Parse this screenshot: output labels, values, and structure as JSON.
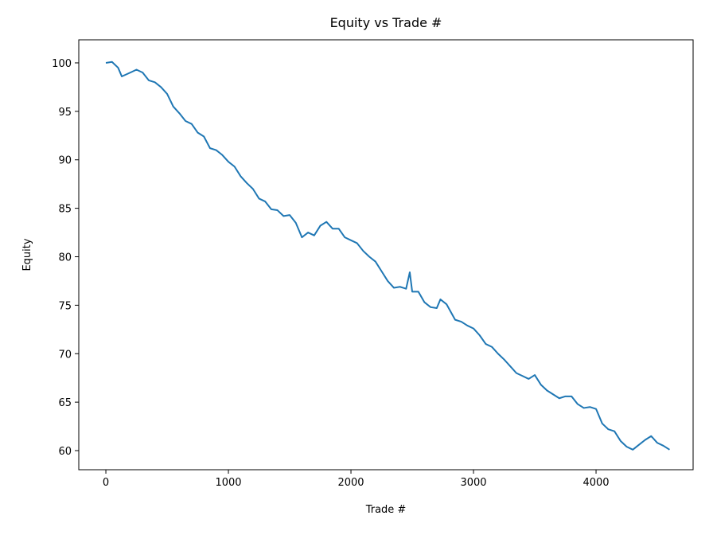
{
  "chart_data": {
    "type": "line",
    "title": "Equity vs Trade #",
    "x_label": "Trade #",
    "y_label": "Equity",
    "color": "#1f77b4",
    "x": [
      0,
      50,
      100,
      130,
      200,
      250,
      300,
      350,
      400,
      450,
      500,
      550,
      600,
      650,
      700,
      750,
      800,
      850,
      900,
      950,
      1000,
      1050,
      1100,
      1150,
      1200,
      1250,
      1300,
      1350,
      1400,
      1450,
      1500,
      1550,
      1600,
      1650,
      1700,
      1750,
      1800,
      1850,
      1900,
      1950,
      2000,
      2050,
      2100,
      2150,
      2200,
      2250,
      2300,
      2350,
      2400,
      2450,
      2480,
      2500,
      2550,
      2600,
      2650,
      2700,
      2730,
      2780,
      2850,
      2900,
      2950,
      3000,
      3050,
      3100,
      3150,
      3200,
      3250,
      3300,
      3350,
      3400,
      3450,
      3500,
      3550,
      3600,
      3650,
      3700,
      3750,
      3800,
      3850,
      3900,
      3950,
      4000,
      4050,
      4100,
      4150,
      4200,
      4250,
      4300,
      4350,
      4400,
      4450,
      4500,
      4550,
      4600
    ],
    "values": [
      100,
      100.1,
      99.5,
      98.6,
      99.0,
      99.3,
      99.0,
      98.2,
      98.0,
      97.5,
      96.8,
      95.5,
      94.8,
      94.0,
      93.7,
      92.8,
      92.4,
      91.2,
      91.0,
      90.5,
      89.8,
      89.3,
      88.3,
      87.6,
      87.0,
      86.0,
      85.7,
      84.9,
      84.8,
      84.2,
      84.3,
      83.5,
      82.0,
      82.5,
      82.2,
      83.2,
      83.6,
      82.9,
      82.9,
      82.0,
      81.7,
      81.4,
      80.6,
      80.0,
      79.5,
      78.5,
      77.5,
      76.8,
      76.9,
      76.7,
      78.4,
      76.4,
      76.4,
      75.3,
      74.8,
      74.7,
      75.6,
      75.1,
      73.5,
      73.3,
      72.9,
      72.6,
      71.9,
      71.0,
      70.7,
      70.0,
      69.4,
      68.7,
      68.0,
      67.7,
      67.4,
      67.8,
      66.8,
      66.2,
      65.8,
      65.4,
      65.6,
      65.6,
      64.8,
      64.4,
      64.5,
      64.3,
      62.8,
      62.2,
      62.0,
      61.0,
      60.4,
      60.1,
      60.6,
      61.1,
      61.5,
      60.8,
      60.5,
      60.1
    ],
    "xlim": [
      -221,
      4792
    ],
    "ylim": [
      58.03,
      102.38
    ],
    "xticks": [
      0,
      1000,
      2000,
      3000,
      4000
    ],
    "yticks": [
      60,
      65,
      70,
      75,
      80,
      85,
      90,
      95,
      100
    ]
  }
}
